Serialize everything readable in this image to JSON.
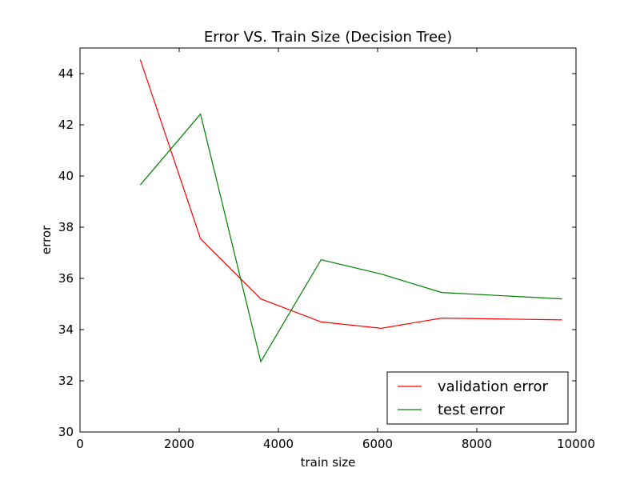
{
  "chart_data": {
    "type": "line",
    "title": "Error VS. Train Size (Decision Tree)",
    "xlabel": "train size",
    "ylabel": "error",
    "xlim": [
      0,
      10000
    ],
    "ylim": [
      30,
      45
    ],
    "xticks": [
      0,
      2000,
      4000,
      6000,
      8000,
      10000
    ],
    "yticks": [
      30,
      32,
      34,
      36,
      38,
      40,
      42,
      44
    ],
    "grid": false,
    "legend_position": "lower-right",
    "x": [
      1215,
      2430,
      3645,
      4860,
      6075,
      7290,
      9720
    ],
    "series": [
      {
        "name": "validation error",
        "color": "#ff0000",
        "values": [
          44.55,
          37.55,
          35.2,
          34.3,
          34.05,
          34.45,
          34.38
        ]
      },
      {
        "name": "test error",
        "color": "#008000",
        "values": [
          39.65,
          42.42,
          32.75,
          36.73,
          36.17,
          35.45,
          35.2
        ]
      }
    ]
  }
}
